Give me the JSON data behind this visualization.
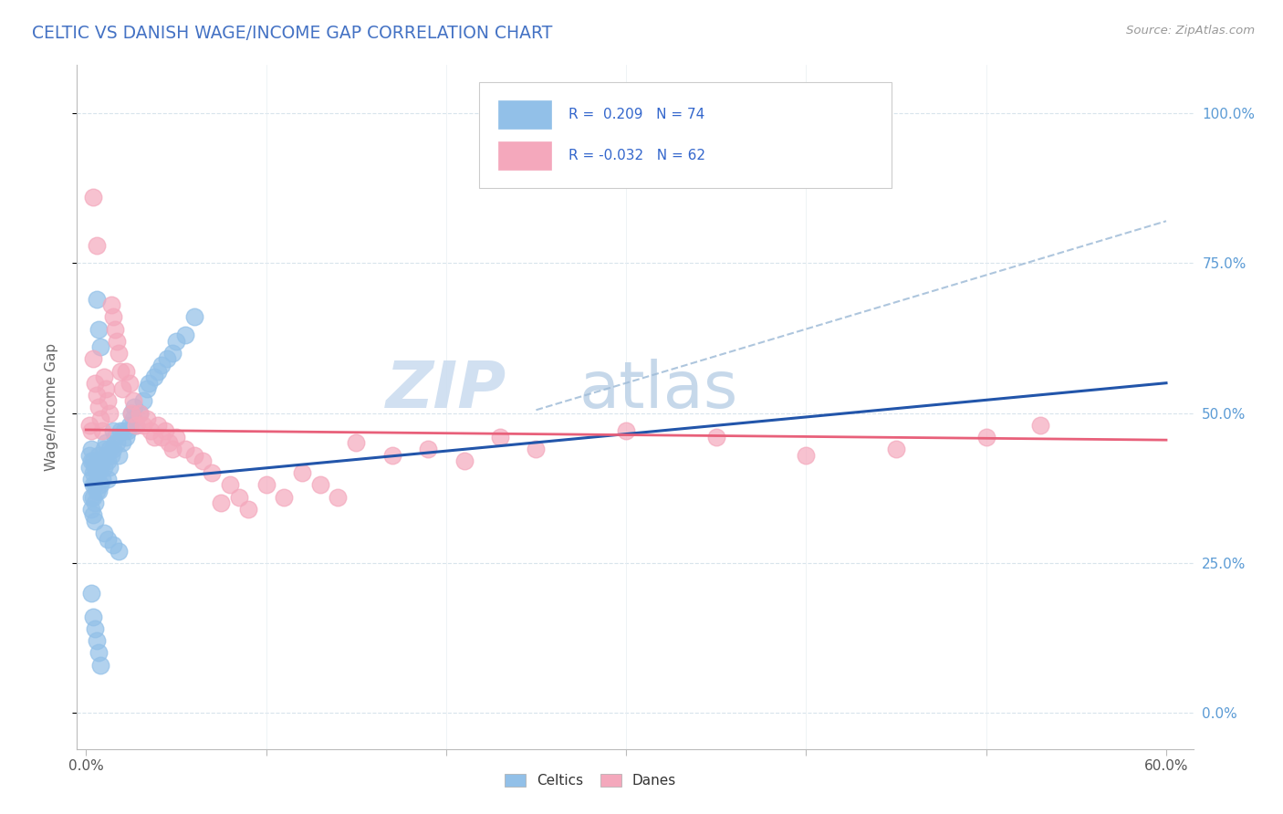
{
  "title": "CELTIC VS DANISH WAGE/INCOME GAP CORRELATION CHART",
  "source": "Source: ZipAtlas.com",
  "ylabel": "Wage/Income Gap",
  "ytick_vals": [
    0.0,
    0.25,
    0.5,
    0.75,
    1.0
  ],
  "ytick_labels": [
    "0.0%",
    "25.0%",
    "50.0%",
    "75.0%",
    "100.0%"
  ],
  "xtick_vals": [
    0.0,
    0.6
  ],
  "xtick_labels": [
    "0.0%",
    "60.0%"
  ],
  "celtics_color": "#92c0e8",
  "danes_color": "#f4a8bc",
  "celtics_line_color": "#2255aa",
  "danes_line_color": "#e8607a",
  "dashed_line_color": "#a0bcd8",
  "background_color": "#ffffff",
  "grid_color": "#d8e4ec",
  "title_color": "#4472c4",
  "source_color": "#999999",
  "watermark_zip_color": "#ccddf0",
  "watermark_atlas_color": "#c0d4e8",
  "celtics_R": 0.209,
  "celtics_N": 74,
  "danes_R": -0.032,
  "danes_N": 62,
  "xlim": [
    -0.005,
    0.615
  ],
  "ylim": [
    -0.06,
    1.08
  ],
  "celtics_x": [
    0.002,
    0.002,
    0.003,
    0.003,
    0.003,
    0.003,
    0.003,
    0.004,
    0.004,
    0.004,
    0.004,
    0.004,
    0.005,
    0.005,
    0.005,
    0.005,
    0.006,
    0.006,
    0.006,
    0.007,
    0.007,
    0.007,
    0.007,
    0.008,
    0.008,
    0.008,
    0.009,
    0.009,
    0.01,
    0.01,
    0.011,
    0.011,
    0.012,
    0.012,
    0.013,
    0.013,
    0.014,
    0.015,
    0.015,
    0.016,
    0.017,
    0.018,
    0.019,
    0.02,
    0.021,
    0.022,
    0.023,
    0.024,
    0.025,
    0.026,
    0.027,
    0.028,
    0.03,
    0.032,
    0.034,
    0.035,
    0.038,
    0.04,
    0.042,
    0.045,
    0.048,
    0.05,
    0.055,
    0.06,
    0.003,
    0.004,
    0.005,
    0.006,
    0.007,
    0.008,
    0.01,
    0.012,
    0.015,
    0.018
  ],
  "celtics_y": [
    0.43,
    0.41,
    0.44,
    0.42,
    0.39,
    0.36,
    0.34,
    0.42,
    0.4,
    0.38,
    0.36,
    0.33,
    0.41,
    0.38,
    0.35,
    0.32,
    0.4,
    0.37,
    0.69,
    0.43,
    0.4,
    0.37,
    0.64,
    0.41,
    0.38,
    0.61,
    0.42,
    0.39,
    0.44,
    0.41,
    0.43,
    0.45,
    0.42,
    0.39,
    0.44,
    0.41,
    0.43,
    0.47,
    0.44,
    0.46,
    0.45,
    0.43,
    0.47,
    0.45,
    0.47,
    0.46,
    0.47,
    0.48,
    0.5,
    0.49,
    0.51,
    0.48,
    0.5,
    0.52,
    0.54,
    0.55,
    0.56,
    0.57,
    0.58,
    0.59,
    0.6,
    0.62,
    0.63,
    0.66,
    0.2,
    0.16,
    0.14,
    0.12,
    0.1,
    0.08,
    0.3,
    0.29,
    0.28,
    0.27
  ],
  "danes_x": [
    0.002,
    0.003,
    0.004,
    0.005,
    0.006,
    0.007,
    0.008,
    0.009,
    0.01,
    0.011,
    0.012,
    0.013,
    0.014,
    0.015,
    0.016,
    0.017,
    0.018,
    0.019,
    0.02,
    0.022,
    0.024,
    0.025,
    0.026,
    0.028,
    0.03,
    0.032,
    0.034,
    0.036,
    0.038,
    0.04,
    0.042,
    0.044,
    0.046,
    0.048,
    0.05,
    0.055,
    0.06,
    0.065,
    0.07,
    0.075,
    0.08,
    0.085,
    0.09,
    0.1,
    0.11,
    0.12,
    0.13,
    0.14,
    0.15,
    0.17,
    0.19,
    0.21,
    0.23,
    0.25,
    0.3,
    0.35,
    0.4,
    0.45,
    0.5,
    0.53,
    0.004,
    0.006
  ],
  "danes_y": [
    0.48,
    0.47,
    0.59,
    0.55,
    0.53,
    0.51,
    0.49,
    0.47,
    0.56,
    0.54,
    0.52,
    0.5,
    0.68,
    0.66,
    0.64,
    0.62,
    0.6,
    0.57,
    0.54,
    0.57,
    0.55,
    0.5,
    0.52,
    0.48,
    0.5,
    0.48,
    0.49,
    0.47,
    0.46,
    0.48,
    0.46,
    0.47,
    0.45,
    0.44,
    0.46,
    0.44,
    0.43,
    0.42,
    0.4,
    0.35,
    0.38,
    0.36,
    0.34,
    0.38,
    0.36,
    0.4,
    0.38,
    0.36,
    0.45,
    0.43,
    0.44,
    0.42,
    0.46,
    0.44,
    0.47,
    0.46,
    0.43,
    0.44,
    0.46,
    0.48,
    0.86,
    0.78
  ]
}
